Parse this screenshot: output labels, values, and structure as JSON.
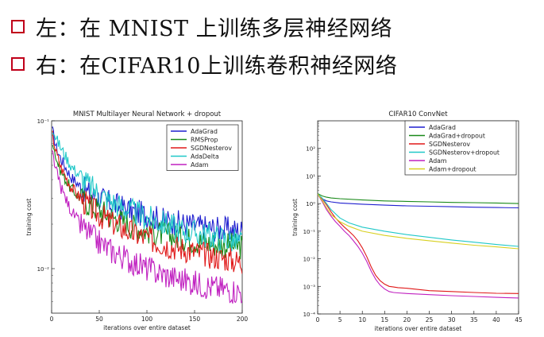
{
  "bullets": [
    {
      "text": "左：在 MNIST 上训练多层神经网络"
    },
    {
      "text": "右：在CIFAR10上训练卷积神经网络"
    }
  ],
  "colors": {
    "bullet": "#c0001a",
    "adagrad": "#1f1fcf",
    "rmsprop": "#1a8a1a",
    "sgdnesterov": "#e01818",
    "adadelta": "#20c8c8",
    "adam": "#c020c0",
    "adam_dropout": "#d8d020"
  },
  "chart_data": [
    {
      "type": "line",
      "title": "MNIST Multilayer Neural Network + dropout",
      "xlabel": "iterations over entire dataset",
      "ylabel": "training cost",
      "xlim": [
        0,
        200
      ],
      "ylim": [
        0.005,
        0.1
      ],
      "yscale": "log",
      "xticks": [
        0,
        50,
        100,
        150,
        200
      ],
      "yticks": [
        {
          "v": 0.1,
          "label": "10⁻¹"
        },
        {
          "v": 0.01,
          "label": "10⁻²"
        }
      ],
      "legend": "top-right",
      "series": [
        {
          "name": "AdaGrad",
          "color": "#1f1fcf",
          "x": [
            1,
            5,
            10,
            20,
            30,
            40,
            50,
            60,
            80,
            100,
            120,
            140,
            160,
            180,
            200
          ],
          "y": [
            0.085,
            0.065,
            0.055,
            0.042,
            0.036,
            0.032,
            0.03,
            0.028,
            0.025,
            0.023,
            0.021,
            0.02,
            0.019,
            0.0185,
            0.018
          ]
        },
        {
          "name": "RMSProp",
          "color": "#1a8a1a",
          "x": [
            1,
            5,
            10,
            20,
            30,
            40,
            50,
            60,
            80,
            100,
            120,
            140,
            160,
            180,
            200
          ],
          "y": [
            0.075,
            0.055,
            0.045,
            0.035,
            0.03,
            0.027,
            0.025,
            0.023,
            0.02,
            0.018,
            0.017,
            0.016,
            0.015,
            0.0145,
            0.014
          ]
        },
        {
          "name": "SGDNesterov",
          "color": "#e01818",
          "x": [
            1,
            5,
            10,
            20,
            30,
            40,
            50,
            60,
            80,
            100,
            120,
            140,
            160,
            180,
            200
          ],
          "y": [
            0.08,
            0.06,
            0.048,
            0.036,
            0.03,
            0.026,
            0.023,
            0.021,
            0.018,
            0.016,
            0.0145,
            0.0135,
            0.0125,
            0.0118,
            0.011
          ]
        },
        {
          "name": "AdaDelta",
          "color": "#20c8c8",
          "x": [
            1,
            5,
            10,
            20,
            30,
            40,
            50,
            60,
            80,
            100,
            120,
            140,
            160,
            180,
            200
          ],
          "y": [
            0.09,
            0.075,
            0.065,
            0.05,
            0.042,
            0.036,
            0.032,
            0.029,
            0.025,
            0.022,
            0.02,
            0.018,
            0.017,
            0.016,
            0.015
          ]
        },
        {
          "name": "Adam",
          "color": "#c020c0",
          "x": [
            1,
            5,
            10,
            20,
            30,
            40,
            50,
            60,
            80,
            100,
            120,
            140,
            160,
            180,
            200
          ],
          "y": [
            0.06,
            0.045,
            0.035,
            0.025,
            0.02,
            0.017,
            0.015,
            0.0135,
            0.0115,
            0.01,
            0.009,
            0.0083,
            0.0077,
            0.0073,
            0.007
          ]
        }
      ]
    },
    {
      "type": "line",
      "title": "CIFAR10 ConvNet",
      "xlabel": "iterations over entire dataset",
      "ylabel": "training cost",
      "xlim": [
        0,
        45
      ],
      "ylim": [
        0.0001,
        1000
      ],
      "yscale": "log",
      "xticks": [
        0,
        5,
        10,
        15,
        20,
        25,
        30,
        35,
        40,
        45
      ],
      "yticks": [
        {
          "v": 100,
          "label": "10²"
        },
        {
          "v": 10,
          "label": "10¹"
        },
        {
          "v": 1,
          "label": "10⁰"
        },
        {
          "v": 0.1,
          "label": "10⁻¹"
        },
        {
          "v": 0.01,
          "label": "10⁻²"
        },
        {
          "v": 0.001,
          "label": "10⁻³"
        },
        {
          "v": 0.0001,
          "label": "10⁻⁴"
        }
      ],
      "legend": "top-right",
      "series": [
        {
          "name": "AdaGrad",
          "color": "#1f1fcf",
          "x": [
            0,
            1,
            2,
            3,
            5,
            10,
            15,
            20,
            25,
            30,
            35,
            40,
            45
          ],
          "y": [
            2.2,
            1.5,
            1.25,
            1.15,
            1.05,
            0.95,
            0.88,
            0.83,
            0.8,
            0.77,
            0.74,
            0.72,
            0.7
          ]
        },
        {
          "name": "AdaGrad+dropout",
          "color": "#1a8a1a",
          "x": [
            0,
            1,
            2,
            3,
            5,
            10,
            15,
            20,
            25,
            30,
            35,
            40,
            45
          ],
          "y": [
            2.3,
            1.9,
            1.7,
            1.6,
            1.5,
            1.35,
            1.25,
            1.2,
            1.15,
            1.1,
            1.08,
            1.05,
            1.0
          ]
        },
        {
          "name": "SGDNesterov",
          "color": "#e01818",
          "x": [
            0,
            1,
            2,
            3,
            4,
            5,
            6,
            7,
            8,
            9,
            10,
            11,
            12,
            13,
            14,
            15,
            16,
            17,
            18,
            20,
            25,
            30,
            35,
            40,
            45
          ],
          "y": [
            2.2,
            1.5,
            0.9,
            0.5,
            0.3,
            0.2,
            0.14,
            0.1,
            0.07,
            0.045,
            0.025,
            0.012,
            0.005,
            0.0025,
            0.0016,
            0.0012,
            0.001,
            0.00095,
            0.0009,
            0.00085,
            0.0007,
            0.00065,
            0.0006,
            0.00056,
            0.00055
          ]
        },
        {
          "name": "SGDNesterov+dropout",
          "color": "#20c8c8",
          "x": [
            0,
            1,
            2,
            3,
            5,
            7,
            10,
            15,
            20,
            25,
            30,
            35,
            40,
            45
          ],
          "y": [
            2.2,
            1.6,
            1.0,
            0.6,
            0.3,
            0.2,
            0.14,
            0.1,
            0.075,
            0.06,
            0.048,
            0.04,
            0.033,
            0.028
          ]
        },
        {
          "name": "Adam",
          "color": "#c020c0",
          "x": [
            0,
            1,
            2,
            3,
            4,
            5,
            6,
            7,
            8,
            9,
            10,
            11,
            12,
            13,
            14,
            15,
            16,
            17,
            18,
            20,
            25,
            30,
            35,
            40,
            45
          ],
          "y": [
            2.2,
            1.2,
            0.6,
            0.35,
            0.22,
            0.15,
            0.1,
            0.07,
            0.045,
            0.028,
            0.016,
            0.008,
            0.0035,
            0.0018,
            0.0011,
            0.0008,
            0.00065,
            0.0006,
            0.00058,
            0.00055,
            0.0005,
            0.00046,
            0.00043,
            0.0004,
            0.00038
          ]
        },
        {
          "name": "Adam+dropout",
          "color": "#d8d020",
          "x": [
            0,
            1,
            2,
            3,
            5,
            7,
            10,
            15,
            20,
            25,
            30,
            35,
            40,
            45
          ],
          "y": [
            2.2,
            1.3,
            0.7,
            0.4,
            0.22,
            0.15,
            0.1,
            0.07,
            0.055,
            0.045,
            0.037,
            0.031,
            0.027,
            0.023
          ]
        }
      ]
    }
  ]
}
